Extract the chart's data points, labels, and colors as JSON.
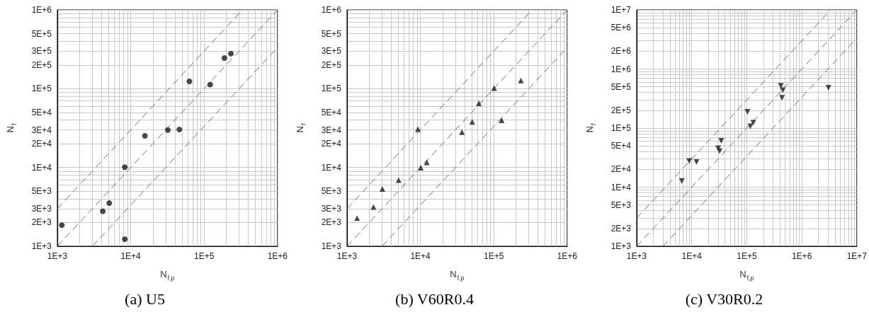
{
  "chart_data": [
    {
      "type": "scatter",
      "title": "(a) U5",
      "xlabel": "N$_{f,p}$",
      "ylabel": "N$_{f}$",
      "log": "xy",
      "grid": true,
      "marker": "circle",
      "xlim": [
        1000,
        1000000
      ],
      "ylim": [
        1000,
        1000000
      ],
      "xticks": [
        {
          "value": 1000,
          "label": "1E+3"
        },
        {
          "value": 10000,
          "label": "1E+4"
        },
        {
          "value": 100000,
          "label": "1E+5"
        },
        {
          "value": 1000000,
          "label": "1E+6"
        }
      ],
      "yticks": [
        {
          "value": 1000,
          "label": "1E+3"
        },
        {
          "value": 2000,
          "label": "2E+3"
        },
        {
          "value": 3000,
          "label": "3E+3"
        },
        {
          "value": 5000,
          "label": "5E+3"
        },
        {
          "value": 10000,
          "label": "1E+4"
        },
        {
          "value": 20000,
          "label": "2E+4"
        },
        {
          "value": 30000,
          "label": "3E+4"
        },
        {
          "value": 50000,
          "label": "5E+4"
        },
        {
          "value": 100000,
          "label": "1E+5"
        },
        {
          "value": 200000,
          "label": "2E+5"
        },
        {
          "value": 300000,
          "label": "3E+5"
        },
        {
          "value": 500000,
          "label": "5E+5"
        },
        {
          "value": 1000000,
          "label": "1E+6"
        }
      ],
      "series": [
        {
          "type": "line",
          "line_style": "dashed",
          "marker": "none",
          "color": "#707070",
          "x": [
            1000,
            333000
          ],
          "values": [
            3000,
            1000000
          ]
        },
        {
          "type": "line",
          "line_style": "dashed",
          "marker": "none",
          "color": "#707070",
          "x": [
            1000,
            1000000
          ],
          "values": [
            1000,
            1000000
          ]
        },
        {
          "type": "line",
          "line_style": "dashed",
          "marker": "none",
          "color": "#707070",
          "x": [
            3000,
            1000000
          ],
          "values": [
            1000,
            333000
          ]
        },
        {
          "color": "#1a1a1a",
          "x": [
            1150,
            4160,
            5100,
            8300,
            8300,
            15600,
            32000,
            46000,
            63000,
            121000,
            189000,
            232000
          ],
          "values": [
            1850,
            2780,
            3530,
            10100,
            1230,
            25200,
            29900,
            30300,
            124000,
            113000,
            245000,
            279000
          ]
        }
      ]
    },
    {
      "type": "scatter",
      "title": "(b) V60R0.4",
      "xlabel": "N$_{f,p}$",
      "ylabel": "N$_{f}$",
      "log": "xy",
      "grid": true,
      "marker": "triangle",
      "xlim": [
        1000,
        1000000
      ],
      "ylim": [
        1000,
        1000000
      ],
      "xticks": [
        {
          "value": 1000,
          "label": "1E+3"
        },
        {
          "value": 10000,
          "label": "1E+4"
        },
        {
          "value": 100000,
          "label": "1E+5"
        },
        {
          "value": 1000000,
          "label": "1E+6"
        }
      ],
      "yticks": [
        {
          "value": 1000,
          "label": "1E+3"
        },
        {
          "value": 2000,
          "label": "2E+3"
        },
        {
          "value": 3000,
          "label": "3E+3"
        },
        {
          "value": 5000,
          "label": "5E+3"
        },
        {
          "value": 10000,
          "label": "1E+4"
        },
        {
          "value": 20000,
          "label": "2E+4"
        },
        {
          "value": 30000,
          "label": "3E+4"
        },
        {
          "value": 50000,
          "label": "5E+4"
        },
        {
          "value": 100000,
          "label": "1E+5"
        },
        {
          "value": 200000,
          "label": "2E+5"
        },
        {
          "value": 300000,
          "label": "3E+5"
        },
        {
          "value": 500000,
          "label": "5E+5"
        },
        {
          "value": 1000000,
          "label": "1E+6"
        }
      ],
      "series": [
        {
          "type": "line",
          "line_style": "dashed",
          "marker": "none",
          "color": "#707070",
          "x": [
            1000,
            333000
          ],
          "values": [
            3000,
            1000000
          ]
        },
        {
          "type": "line",
          "line_style": "dashed",
          "marker": "none",
          "color": "#707070",
          "x": [
            1000,
            1000000
          ],
          "values": [
            1000,
            1000000
          ]
        },
        {
          "type": "line",
          "line_style": "dashed",
          "marker": "none",
          "color": "#707070",
          "x": [
            3000,
            1000000
          ],
          "values": [
            1000,
            333000
          ]
        },
        {
          "color": "#1a1a1a",
          "x": [
            1370,
            2290,
            3030,
            5050,
            9240,
            10100,
            12200,
            36800,
            50800,
            62600,
            101000,
            128000,
            234000
          ],
          "values": [
            2270,
            3150,
            5340,
            6900,
            30600,
            9950,
            11600,
            28100,
            37900,
            65200,
            102000,
            39600,
            127000
          ]
        }
      ]
    },
    {
      "type": "scatter",
      "title": "(c) V30R0.2",
      "xlabel": "N$_{f,p}$",
      "ylabel": "N$_{f}$",
      "log": "xy",
      "grid": true,
      "marker": "triangle-down",
      "xlim": [
        1000,
        10000000
      ],
      "ylim": [
        1000,
        10000000
      ],
      "xticks": [
        {
          "value": 1000,
          "label": "1E+3"
        },
        {
          "value": 10000,
          "label": "1E+4"
        },
        {
          "value": 100000,
          "label": "1E+5"
        },
        {
          "value": 1000000,
          "label": "1E+6"
        },
        {
          "value": 10000000,
          "label": "1E+7"
        }
      ],
      "yticks": [
        {
          "value": 1000,
          "label": "1E+3"
        },
        {
          "value": 2000,
          "label": "2E+3"
        },
        {
          "value": 5000,
          "label": "5E+3"
        },
        {
          "value": 10000,
          "label": "1E+4"
        },
        {
          "value": 20000,
          "label": "2E+4"
        },
        {
          "value": 50000,
          "label": "5E+4"
        },
        {
          "value": 100000,
          "label": "1E+5"
        },
        {
          "value": 200000,
          "label": "2E+5"
        },
        {
          "value": 500000,
          "label": "5E+5"
        },
        {
          "value": 1000000,
          "label": "1E+6"
        },
        {
          "value": 2000000,
          "label": "2E+6"
        },
        {
          "value": 5000000,
          "label": "5E+6"
        },
        {
          "value": 10000000,
          "label": "1E+7"
        }
      ],
      "series": [
        {
          "type": "line",
          "line_style": "dashed",
          "marker": "none",
          "color": "#707070",
          "x": [
            1000,
            3330000
          ],
          "values": [
            3000,
            10000000
          ]
        },
        {
          "type": "line",
          "line_style": "dashed",
          "marker": "none",
          "color": "#707070",
          "x": [
            1000,
            10000000
          ],
          "values": [
            1000,
            10000000
          ]
        },
        {
          "type": "line",
          "line_style": "dashed",
          "marker": "none",
          "color": "#707070",
          "x": [
            3000,
            10000000
          ],
          "values": [
            1000,
            3330000
          ]
        },
        {
          "color": "#1a1a1a",
          "x": [
            6600,
            9000,
            12200,
            30200,
            32100,
            34400,
            103000,
            116000,
            131000,
            416000,
            451000,
            437000,
            3050000
          ],
          "values": [
            12700,
            27700,
            26600,
            45500,
            40800,
            60800,
            189000,
            107000,
            123000,
            518000,
            437000,
            324000,
            483000
          ]
        }
      ]
    }
  ]
}
